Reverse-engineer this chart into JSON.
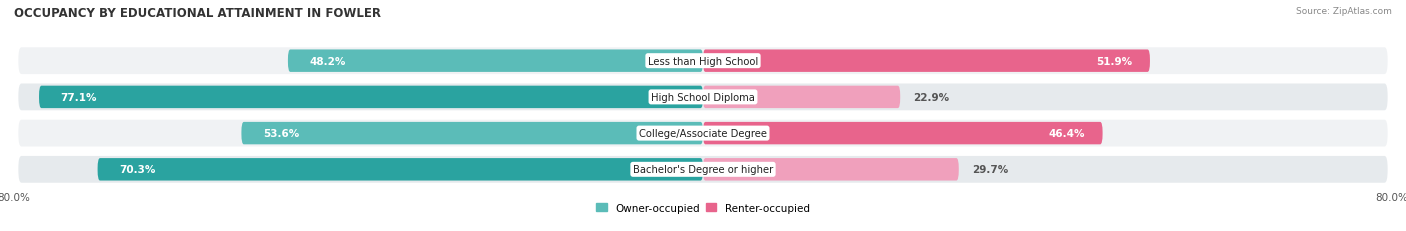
{
  "title": "OCCUPANCY BY EDUCATIONAL ATTAINMENT IN FOWLER",
  "source": "Source: ZipAtlas.com",
  "categories": [
    "Less than High School",
    "High School Diploma",
    "College/Associate Degree",
    "Bachelor's Degree or higher"
  ],
  "owner_values": [
    48.2,
    77.1,
    53.6,
    70.3
  ],
  "renter_values": [
    51.9,
    22.9,
    46.4,
    29.7
  ],
  "owner_color": "#4db8b4",
  "owner_color_dark": "#2aa3a0",
  "renter_color_dark": "#e8648c",
  "renter_color_light": "#f0a0bc",
  "bg_color": "#ffffff",
  "row_bg_odd": "#f0f2f4",
  "row_bg_even": "#e6eaed",
  "xlim_left": -80.0,
  "xlim_right": 80.0,
  "bar_height": 0.62,
  "title_fontsize": 8.5,
  "label_fontsize": 7.5,
  "tick_fontsize": 7.5,
  "legend_fontsize": 7.5,
  "label_color_white": "#ffffff",
  "label_color_dark": "#555555"
}
